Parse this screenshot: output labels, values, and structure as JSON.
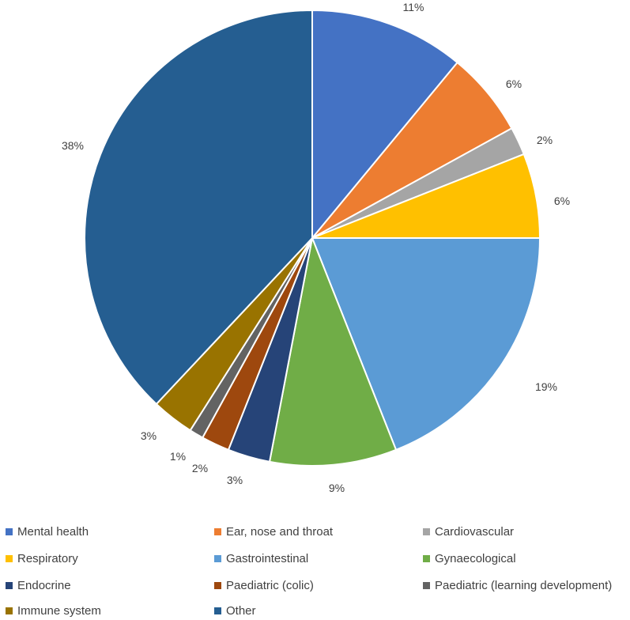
{
  "chart_data": {
    "type": "pie",
    "title": "",
    "start_angle_deg": 0,
    "direction": "clockwise",
    "slices": [
      {
        "label": "Mental health",
        "value": 11,
        "display": "11%",
        "color": "#4472C4"
      },
      {
        "label": "Ear, nose and throat",
        "value": 6,
        "display": "6%",
        "color": "#ED7D31"
      },
      {
        "label": "Cardiovascular",
        "value": 2,
        "display": "2%",
        "color": "#A5A5A5"
      },
      {
        "label": "Respiratory",
        "value": 6,
        "display": "6%",
        "color": "#FFC000"
      },
      {
        "label": "Gastrointestinal",
        "value": 19,
        "display": "19%",
        "color": "#5B9BD5"
      },
      {
        "label": "Gynaecological",
        "value": 9,
        "display": "9%",
        "color": "#70AD47"
      },
      {
        "label": "Endocrine",
        "value": 3,
        "display": "3%",
        "color": "#264478"
      },
      {
        "label": "Paediatric (colic)",
        "value": 2,
        "display": "2%",
        "color": "#9E480E"
      },
      {
        "label": "Paediatric (learning development)",
        "value": 1,
        "display": "1%",
        "color": "#636363"
      },
      {
        "label": "Immune system",
        "value": 3,
        "display": "3%",
        "color": "#997300"
      },
      {
        "label": "Other",
        "value": 38,
        "display": "38%",
        "color": "#255E91"
      }
    ],
    "legend_position": "bottom"
  }
}
